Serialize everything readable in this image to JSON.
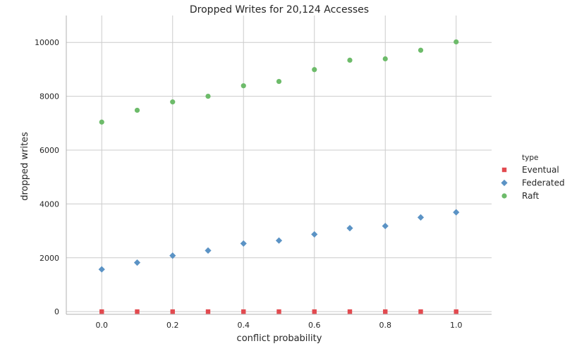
{
  "chart_data": {
    "type": "scatter",
    "title": "Dropped Writes for 20,124 Accesses",
    "xlabel": "conflict probability",
    "ylabel": "dropped writes",
    "xlim": [
      -0.1,
      1.1
    ],
    "ylim": [
      -100,
      11000
    ],
    "xticks": [
      0.0,
      0.2,
      0.4,
      0.6,
      0.8,
      1.0
    ],
    "xtick_labels": [
      "0.0",
      "0.2",
      "0.4",
      "0.6",
      "0.8",
      "1.0"
    ],
    "yticks": [
      0,
      2000,
      4000,
      6000,
      8000,
      10000
    ],
    "ytick_labels": [
      "0",
      "2000",
      "4000",
      "6000",
      "8000",
      "10000"
    ],
    "grid": true,
    "legend": {
      "title": "type",
      "placement": "right"
    },
    "x": [
      0.0,
      0.1,
      0.2,
      0.3,
      0.4,
      0.5,
      0.6,
      0.7,
      0.8,
      0.9,
      1.0
    ],
    "series": [
      {
        "name": "Eventual",
        "marker": "square",
        "color": "#e24a4f",
        "values": [
          0,
          0,
          0,
          0,
          0,
          0,
          0,
          0,
          0,
          0,
          0
        ]
      },
      {
        "name": "Federated",
        "marker": "diamond",
        "color": "#5b93c5",
        "values": [
          1570,
          1820,
          2080,
          2270,
          2530,
          2640,
          2870,
          3100,
          3180,
          3500,
          3690
        ]
      },
      {
        "name": "Raft",
        "marker": "circle",
        "color": "#6dbb6a",
        "values": [
          7040,
          7480,
          7790,
          8000,
          8390,
          8550,
          8990,
          9340,
          9390,
          9710,
          10020
        ]
      }
    ]
  }
}
